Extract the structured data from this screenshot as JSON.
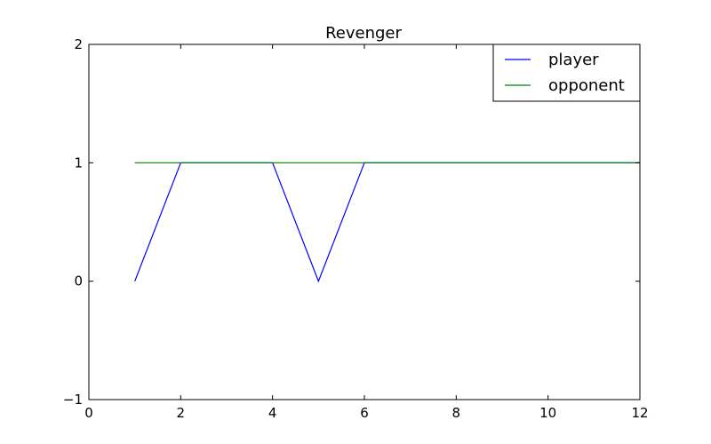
{
  "chart_data": {
    "type": "line",
    "title": "Revenger",
    "xlabel": "",
    "ylabel": "",
    "xlim": [
      0,
      12
    ],
    "ylim": [
      -1,
      2
    ],
    "xticks": [
      0,
      2,
      4,
      6,
      8,
      10,
      12
    ],
    "yticks": [
      -1,
      0,
      1,
      2
    ],
    "xtick_labels": [
      "0",
      "2",
      "4",
      "6",
      "8",
      "10",
      "12"
    ],
    "ytick_labels": [
      "−1",
      "0",
      "1",
      "2"
    ],
    "grid": false,
    "legend_position": "top-right",
    "series": [
      {
        "name": "player",
        "color": "#0000ff",
        "x": [
          1,
          2,
          3,
          4,
          5,
          6,
          7,
          8,
          9,
          10,
          11,
          12
        ],
        "y": [
          0,
          1,
          1,
          1,
          0,
          1,
          1,
          1,
          1,
          1,
          1,
          1
        ]
      },
      {
        "name": "opponent",
        "color": "#008000",
        "x": [
          1,
          2,
          3,
          4,
          5,
          6,
          7,
          8,
          9,
          10,
          11,
          12
        ],
        "y": [
          1,
          1,
          1,
          1,
          1,
          1,
          1,
          1,
          1,
          1,
          1,
          1
        ]
      }
    ]
  }
}
